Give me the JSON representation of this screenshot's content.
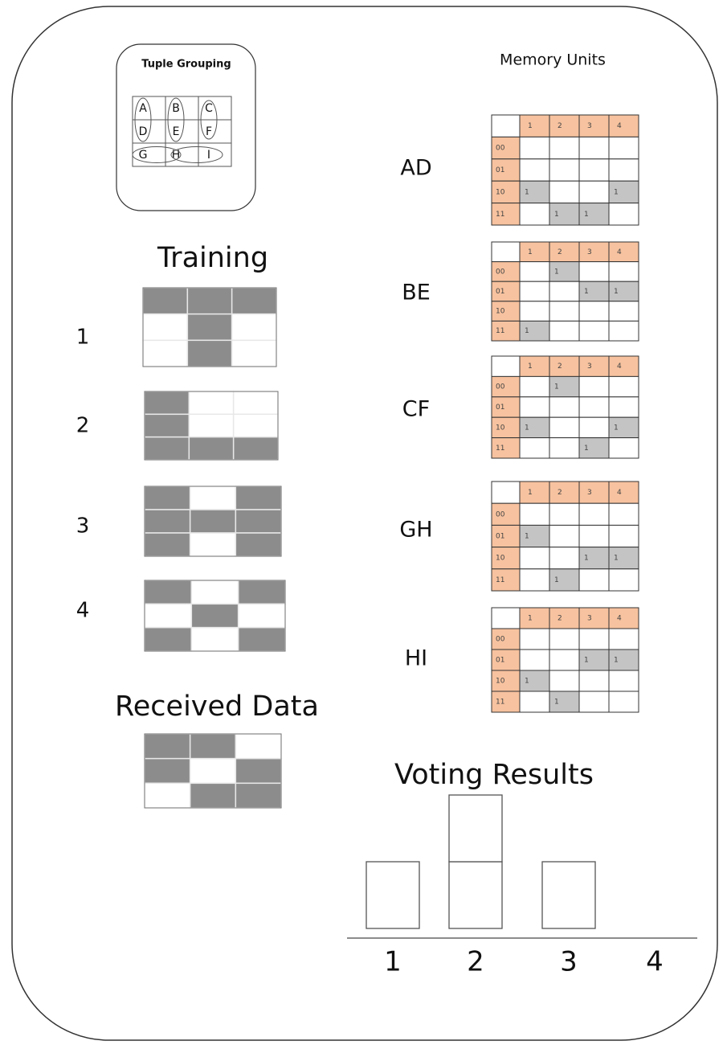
{
  "tuple_grouping": {
    "title": "Tuple Grouping",
    "letters": [
      [
        "A",
        "B",
        "C"
      ],
      [
        "D",
        "E",
        "F"
      ],
      [
        "G",
        "H",
        "I"
      ]
    ]
  },
  "memory_title": "Memory Units",
  "training": {
    "title": "Training",
    "patterns": [
      {
        "label": "1",
        "cells": [
          [
            1,
            1,
            1
          ],
          [
            0,
            1,
            0
          ],
          [
            0,
            1,
            0
          ]
        ]
      },
      {
        "label": "2",
        "cells": [
          [
            1,
            0,
            0
          ],
          [
            1,
            0,
            0
          ],
          [
            1,
            1,
            1
          ]
        ]
      },
      {
        "label": "3",
        "cells": [
          [
            1,
            0,
            1
          ],
          [
            1,
            1,
            1
          ],
          [
            1,
            0,
            1
          ]
        ]
      },
      {
        "label": "4",
        "cells": [
          [
            1,
            0,
            1
          ],
          [
            0,
            1,
            0
          ],
          [
            1,
            0,
            1
          ]
        ]
      }
    ]
  },
  "received": {
    "title": "Received Data",
    "cells": [
      [
        1,
        1,
        0
      ],
      [
        1,
        0,
        1
      ],
      [
        0,
        1,
        1
      ]
    ]
  },
  "memory_units": [
    {
      "label": "AD",
      "columns": [
        "1",
        "2",
        "3",
        "4"
      ],
      "rows": [
        {
          "label": "00",
          "cells": [
            null,
            null,
            null,
            null
          ]
        },
        {
          "label": "01",
          "cells": [
            null,
            null,
            null,
            null
          ]
        },
        {
          "label": "10",
          "cells": [
            "1",
            null,
            null,
            "1"
          ]
        },
        {
          "label": "11",
          "cells": [
            null,
            "1",
            "1",
            null
          ]
        }
      ]
    },
    {
      "label": "BE",
      "columns": [
        "1",
        "2",
        "3",
        "4"
      ],
      "rows": [
        {
          "label": "00",
          "cells": [
            null,
            "1",
            null,
            null
          ]
        },
        {
          "label": "01",
          "cells": [
            null,
            null,
            "1",
            "1"
          ]
        },
        {
          "label": "10",
          "cells": [
            null,
            null,
            null,
            null
          ]
        },
        {
          "label": "11",
          "cells": [
            "1",
            null,
            null,
            null
          ]
        }
      ]
    },
    {
      "label": "CF",
      "columns": [
        "1",
        "2",
        "3",
        "4"
      ],
      "rows": [
        {
          "label": "00",
          "cells": [
            null,
            "1",
            null,
            null
          ]
        },
        {
          "label": "01",
          "cells": [
            null,
            null,
            null,
            null
          ]
        },
        {
          "label": "10",
          "cells": [
            "1",
            null,
            null,
            "1"
          ]
        },
        {
          "label": "11",
          "cells": [
            null,
            null,
            "1",
            null
          ]
        }
      ]
    },
    {
      "label": "GH",
      "columns": [
        "1",
        "2",
        "3",
        "4"
      ],
      "rows": [
        {
          "label": "00",
          "cells": [
            null,
            null,
            null,
            null
          ]
        },
        {
          "label": "01",
          "cells": [
            "1",
            null,
            null,
            null
          ]
        },
        {
          "label": "10",
          "cells": [
            null,
            null,
            "1",
            "1"
          ]
        },
        {
          "label": "11",
          "cells": [
            null,
            "1",
            null,
            null
          ]
        }
      ]
    },
    {
      "label": "HI",
      "columns": [
        "1",
        "2",
        "3",
        "4"
      ],
      "rows": [
        {
          "label": "00",
          "cells": [
            null,
            null,
            null,
            null
          ]
        },
        {
          "label": "01",
          "cells": [
            null,
            null,
            "1",
            "1"
          ]
        },
        {
          "label": "10",
          "cells": [
            "1",
            null,
            null,
            null
          ]
        },
        {
          "label": "11",
          "cells": [
            null,
            "1",
            null,
            null
          ]
        }
      ]
    }
  ],
  "voting": {
    "title": "Voting Results",
    "categories": [
      "1",
      "2",
      "3",
      "4"
    ],
    "votes": [
      1,
      2,
      1,
      0
    ]
  }
}
